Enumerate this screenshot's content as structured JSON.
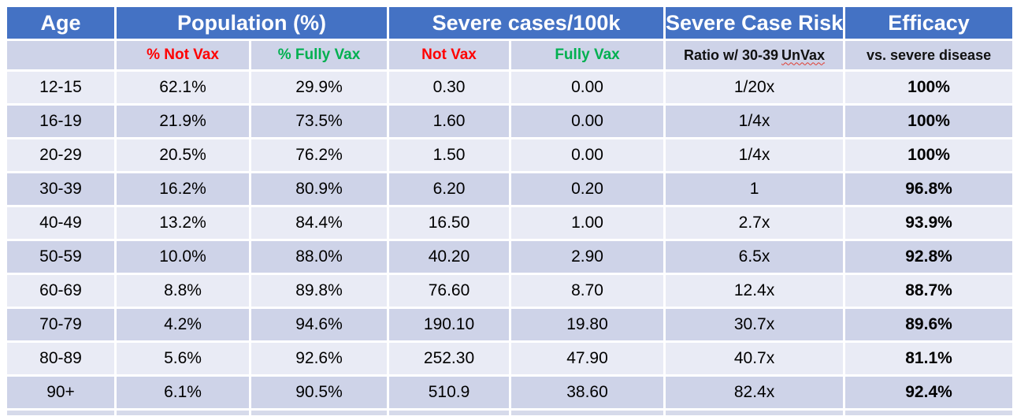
{
  "colors": {
    "header_bg": "#4472C4",
    "header_text": "#ffffff",
    "band_light": "#E9EBF5",
    "band_dark": "#CED3E8",
    "negative_red": "#FF0000",
    "positive_green": "#00B050",
    "spellcheck_underline": "#E03C31"
  },
  "chart_data": {
    "type": "table",
    "column_groups": [
      {
        "label": "Age",
        "span": 1
      },
      {
        "label": "Population (%)",
        "span": 2
      },
      {
        "label": "Severe cases/100k",
        "span": 2
      },
      {
        "label": "Severe Case Risk",
        "span": 1
      },
      {
        "label": "Efficacy",
        "span": 1
      }
    ],
    "subheaders": {
      "age": "",
      "pct_not_vax": "% Not Vax",
      "pct_fully_vax": "% Fully Vax",
      "cases_not_vax": "Not Vax",
      "cases_fully_vax": "Fully Vax",
      "risk_prefix": "Ratio w/ 30-39",
      "risk_word": "UnVax",
      "efficacy": "vs. severe disease"
    },
    "rows": [
      {
        "age": "12-15",
        "pct_not_vax": "62.1%",
        "pct_fully_vax": "29.9%",
        "cases_not_vax": "0.30",
        "cases_fully_vax": "0.00",
        "risk_ratio": "1/20x",
        "efficacy": "100%"
      },
      {
        "age": "16-19",
        "pct_not_vax": "21.9%",
        "pct_fully_vax": "73.5%",
        "cases_not_vax": "1.60",
        "cases_fully_vax": "0.00",
        "risk_ratio": "1/4x",
        "efficacy": "100%"
      },
      {
        "age": "20-29",
        "pct_not_vax": "20.5%",
        "pct_fully_vax": "76.2%",
        "cases_not_vax": "1.50",
        "cases_fully_vax": "0.00",
        "risk_ratio": "1/4x",
        "efficacy": "100%"
      },
      {
        "age": "30-39",
        "pct_not_vax": "16.2%",
        "pct_fully_vax": "80.9%",
        "cases_not_vax": "6.20",
        "cases_fully_vax": "0.20",
        "risk_ratio": "1",
        "efficacy": "96.8%"
      },
      {
        "age": "40-49",
        "pct_not_vax": "13.2%",
        "pct_fully_vax": "84.4%",
        "cases_not_vax": "16.50",
        "cases_fully_vax": "1.00",
        "risk_ratio": "2.7x",
        "efficacy": "93.9%"
      },
      {
        "age": "50-59",
        "pct_not_vax": "10.0%",
        "pct_fully_vax": "88.0%",
        "cases_not_vax": "40.20",
        "cases_fully_vax": "2.90",
        "risk_ratio": "6.5x",
        "efficacy": "92.8%"
      },
      {
        "age": "60-69",
        "pct_not_vax": "8.8%",
        "pct_fully_vax": "89.8%",
        "cases_not_vax": "76.60",
        "cases_fully_vax": "8.70",
        "risk_ratio": "12.4x",
        "efficacy": "88.7%"
      },
      {
        "age": "70-79",
        "pct_not_vax": "4.2%",
        "pct_fully_vax": "94.6%",
        "cases_not_vax": "190.10",
        "cases_fully_vax": "19.80",
        "risk_ratio": "30.7x",
        "efficacy": "89.6%"
      },
      {
        "age": "80-89",
        "pct_not_vax": "5.6%",
        "pct_fully_vax": "92.6%",
        "cases_not_vax": "252.30",
        "cases_fully_vax": "47.90",
        "risk_ratio": "40.7x",
        "efficacy": "81.1%"
      },
      {
        "age": "90+",
        "pct_not_vax": "6.1%",
        "pct_fully_vax": "90.5%",
        "cases_not_vax": "510.9",
        "cases_fully_vax": "38.60",
        "risk_ratio": "82.4x",
        "efficacy": "92.4%"
      }
    ]
  }
}
